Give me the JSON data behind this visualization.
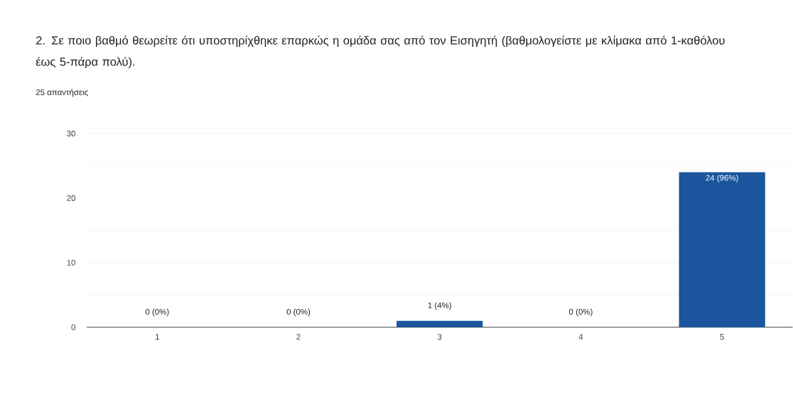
{
  "chart_data": {
    "type": "bar",
    "title": "2. Σε ποιο βαθμό θεωρείτε ότι υποστηρίχθηκε επαρκώς η ομάδα σας από τον Εισηγητή (βαθμολογείστε με κλίμακα από 1-καθόλου έως 5-πάρα πολύ).",
    "subtitle": "25 απαντήσεις",
    "categories": [
      "1",
      "2",
      "3",
      "4",
      "5"
    ],
    "values": [
      0,
      0,
      1,
      0,
      24
    ],
    "value_labels": [
      "0 (0%)",
      "0 (0%)",
      "1 (4%)",
      "0 (0%)",
      "24 (96%)"
    ],
    "color": "#1a559d",
    "ylim": [
      0,
      30
    ],
    "yticks": [
      0,
      {
        "value": 5,
        "label": null
      },
      10,
      {
        "value": 15,
        "label": null
      },
      20,
      {
        "value": 25,
        "label": null
      },
      30
    ],
    "grid": "y"
  }
}
